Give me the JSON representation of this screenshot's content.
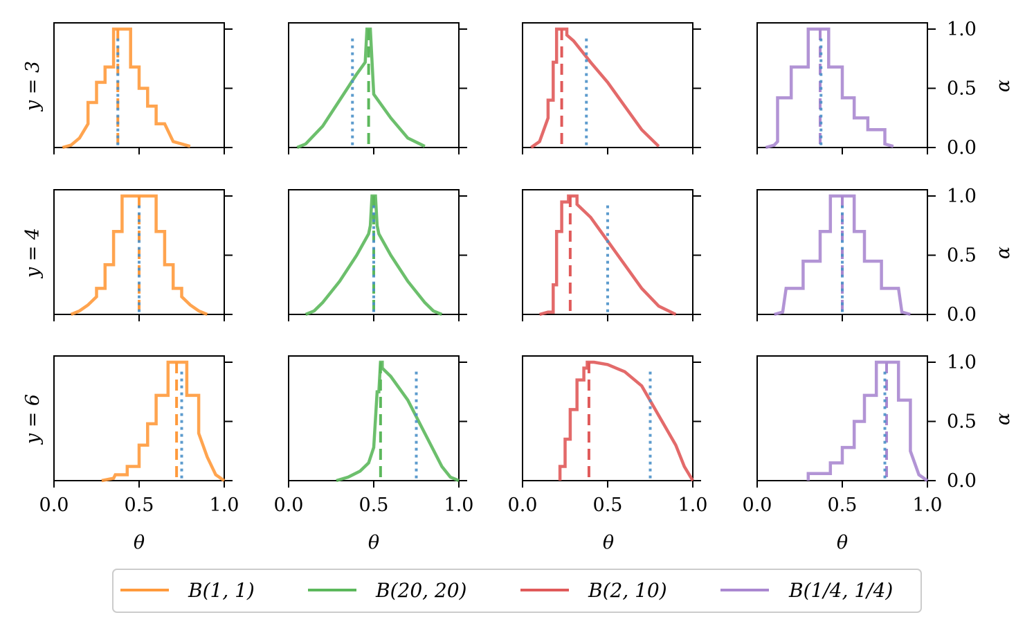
{
  "chart_data": {
    "type": "line",
    "title": "",
    "layout": {
      "rows": 3,
      "cols": 4
    },
    "xlabel": "θ",
    "ylabel_right": "α",
    "xlim": [
      0,
      1
    ],
    "ylim": [
      0,
      1
    ],
    "xticks": [
      "0.0",
      "0.5",
      "1.0"
    ],
    "yticks": [
      "0.0",
      "0.5",
      "1.0"
    ],
    "row_labels": [
      "y = 3",
      "y = 4",
      "y = 6"
    ],
    "true_values": [
      0.375,
      0.5,
      0.75
    ],
    "legend": [
      {
        "label": "B(1, 1)",
        "color": "#ff9a3c"
      },
      {
        "label": "B(20, 20)",
        "color": "#5cb85c"
      },
      {
        "label": "B(2, 10)",
        "color": "#e05a5a"
      },
      {
        "label": "B(1/4, 1/4)",
        "color": "#aa88d0"
      }
    ],
    "series_colors": [
      "#ff9a3c",
      "#5cb85c",
      "#e05a5a",
      "#aa88d0"
    ],
    "truth_line_color": "#4a90c8",
    "panels": [
      [
        {
          "prior": "B(1, 1)",
          "mode": 0.375,
          "curve": [
            [
              0.05,
              0
            ],
            [
              0.1,
              0.02
            ],
            [
              0.15,
              0.08
            ],
            [
              0.2,
              0.2
            ],
            [
              0.2,
              0.38
            ],
            [
              0.25,
              0.38
            ],
            [
              0.25,
              0.55
            ],
            [
              0.3,
              0.55
            ],
            [
              0.3,
              0.68
            ],
            [
              0.35,
              0.68
            ],
            [
              0.35,
              1.0
            ],
            [
              0.45,
              1.0
            ],
            [
              0.45,
              0.68
            ],
            [
              0.5,
              0.68
            ],
            [
              0.5,
              0.5
            ],
            [
              0.55,
              0.5
            ],
            [
              0.55,
              0.35
            ],
            [
              0.6,
              0.35
            ],
            [
              0.6,
              0.2
            ],
            [
              0.65,
              0.2
            ],
            [
              0.7,
              0.05
            ],
            [
              0.8,
              0.01
            ]
          ]
        },
        {
          "prior": "B(20, 20)",
          "mode": 0.47,
          "curve": [
            [
              0.05,
              0
            ],
            [
              0.1,
              0.03
            ],
            [
              0.2,
              0.18
            ],
            [
              0.3,
              0.4
            ],
            [
              0.4,
              0.62
            ],
            [
              0.45,
              0.72
            ],
            [
              0.46,
              1.0
            ],
            [
              0.48,
              1.0
            ],
            [
              0.5,
              0.45
            ],
            [
              0.6,
              0.25
            ],
            [
              0.7,
              0.08
            ],
            [
              0.8,
              0.01
            ]
          ]
        },
        {
          "prior": "B(2, 10)",
          "mode": 0.23,
          "curve": [
            [
              0.05,
              0
            ],
            [
              0.1,
              0.05
            ],
            [
              0.15,
              0.25
            ],
            [
              0.15,
              0.4
            ],
            [
              0.18,
              0.4
            ],
            [
              0.18,
              0.72
            ],
            [
              0.2,
              0.72
            ],
            [
              0.2,
              1.0
            ],
            [
              0.26,
              1.0
            ],
            [
              0.26,
              0.95
            ],
            [
              0.3,
              0.9
            ],
            [
              0.4,
              0.72
            ],
            [
              0.5,
              0.55
            ],
            [
              0.6,
              0.35
            ],
            [
              0.7,
              0.15
            ],
            [
              0.8,
              0.01
            ]
          ]
        },
        {
          "prior": "B(1/4, 1/4)",
          "mode": 0.37,
          "curve": [
            [
              0.05,
              0
            ],
            [
              0.1,
              0.02
            ],
            [
              0.12,
              0.05
            ],
            [
              0.12,
              0.42
            ],
            [
              0.2,
              0.42
            ],
            [
              0.2,
              0.68
            ],
            [
              0.3,
              0.68
            ],
            [
              0.3,
              1.0
            ],
            [
              0.42,
              1.0
            ],
            [
              0.42,
              0.68
            ],
            [
              0.5,
              0.68
            ],
            [
              0.5,
              0.42
            ],
            [
              0.57,
              0.42
            ],
            [
              0.57,
              0.25
            ],
            [
              0.65,
              0.25
            ],
            [
              0.65,
              0.15
            ],
            [
              0.75,
              0.15
            ],
            [
              0.75,
              0.03
            ],
            [
              0.8,
              0.01
            ]
          ]
        }
      ],
      [
        {
          "prior": "B(1, 1)",
          "mode": 0.5,
          "curve": [
            [
              0.1,
              0
            ],
            [
              0.15,
              0.03
            ],
            [
              0.2,
              0.08
            ],
            [
              0.25,
              0.15
            ],
            [
              0.25,
              0.22
            ],
            [
              0.3,
              0.22
            ],
            [
              0.3,
              0.42
            ],
            [
              0.35,
              0.42
            ],
            [
              0.35,
              0.7
            ],
            [
              0.4,
              0.7
            ],
            [
              0.4,
              1.0
            ],
            [
              0.6,
              1.0
            ],
            [
              0.6,
              0.7
            ],
            [
              0.65,
              0.7
            ],
            [
              0.65,
              0.42
            ],
            [
              0.7,
              0.42
            ],
            [
              0.7,
              0.22
            ],
            [
              0.75,
              0.22
            ],
            [
              0.75,
              0.15
            ],
            [
              0.8,
              0.08
            ],
            [
              0.85,
              0.03
            ],
            [
              0.9,
              0
            ]
          ]
        },
        {
          "prior": "B(20, 20)",
          "mode": 0.5,
          "curve": [
            [
              0.1,
              0
            ],
            [
              0.15,
              0.03
            ],
            [
              0.2,
              0.1
            ],
            [
              0.3,
              0.28
            ],
            [
              0.4,
              0.5
            ],
            [
              0.47,
              0.68
            ],
            [
              0.48,
              0.75
            ],
            [
              0.49,
              1.0
            ],
            [
              0.51,
              1.0
            ],
            [
              0.52,
              0.75
            ],
            [
              0.53,
              0.68
            ],
            [
              0.6,
              0.5
            ],
            [
              0.7,
              0.28
            ],
            [
              0.8,
              0.1
            ],
            [
              0.85,
              0.03
            ],
            [
              0.9,
              0
            ]
          ]
        },
        {
          "prior": "B(2, 10)",
          "mode": 0.28,
          "curve": [
            [
              0.1,
              0
            ],
            [
              0.15,
              0.02
            ],
            [
              0.18,
              0.02
            ],
            [
              0.18,
              0.25
            ],
            [
              0.2,
              0.25
            ],
            [
              0.2,
              0.7
            ],
            [
              0.23,
              0.7
            ],
            [
              0.23,
              0.95
            ],
            [
              0.27,
              0.95
            ],
            [
              0.27,
              1.0
            ],
            [
              0.32,
              1.0
            ],
            [
              0.32,
              0.93
            ],
            [
              0.4,
              0.82
            ],
            [
              0.5,
              0.62
            ],
            [
              0.6,
              0.42
            ],
            [
              0.7,
              0.22
            ],
            [
              0.8,
              0.07
            ],
            [
              0.9,
              0
            ]
          ]
        },
        {
          "prior": "B(1/4, 1/4)",
          "mode": 0.5,
          "curve": [
            [
              0.1,
              0
            ],
            [
              0.15,
              0.02
            ],
            [
              0.17,
              0.22
            ],
            [
              0.27,
              0.22
            ],
            [
              0.27,
              0.45
            ],
            [
              0.37,
              0.45
            ],
            [
              0.37,
              0.7
            ],
            [
              0.43,
              0.7
            ],
            [
              0.43,
              1.0
            ],
            [
              0.57,
              1.0
            ],
            [
              0.57,
              0.7
            ],
            [
              0.63,
              0.7
            ],
            [
              0.63,
              0.45
            ],
            [
              0.73,
              0.45
            ],
            [
              0.73,
              0.22
            ],
            [
              0.83,
              0.22
            ],
            [
              0.85,
              0.02
            ],
            [
              0.9,
              0
            ]
          ]
        }
      ],
      [
        {
          "prior": "B(1, 1)",
          "mode": 0.72,
          "curve": [
            [
              0.28,
              0
            ],
            [
              0.35,
              0.02
            ],
            [
              0.36,
              0.05
            ],
            [
              0.43,
              0.05
            ],
            [
              0.43,
              0.12
            ],
            [
              0.5,
              0.12
            ],
            [
              0.5,
              0.3
            ],
            [
              0.55,
              0.3
            ],
            [
              0.55,
              0.48
            ],
            [
              0.6,
              0.48
            ],
            [
              0.6,
              0.72
            ],
            [
              0.67,
              0.72
            ],
            [
              0.67,
              1.0
            ],
            [
              0.78,
              1.0
            ],
            [
              0.78,
              0.72
            ],
            [
              0.85,
              0.72
            ],
            [
              0.85,
              0.4
            ],
            [
              0.9,
              0.2
            ],
            [
              0.95,
              0.05
            ],
            [
              1.0,
              0
            ]
          ]
        },
        {
          "prior": "B(20, 20)",
          "mode": 0.54,
          "curve": [
            [
              0.28,
              0
            ],
            [
              0.35,
              0.03
            ],
            [
              0.42,
              0.08
            ],
            [
              0.47,
              0.15
            ],
            [
              0.5,
              0.28
            ],
            [
              0.52,
              0.75
            ],
            [
              0.53,
              0.75
            ],
            [
              0.54,
              1.0
            ],
            [
              0.55,
              1.0
            ],
            [
              0.55,
              0.95
            ],
            [
              0.6,
              0.88
            ],
            [
              0.7,
              0.68
            ],
            [
              0.8,
              0.4
            ],
            [
              0.9,
              0.12
            ],
            [
              0.95,
              0.03
            ],
            [
              1.0,
              0
            ]
          ]
        },
        {
          "prior": "B(2, 10)",
          "mode": 0.39,
          "curve": [
            [
              0.22,
              0
            ],
            [
              0.22,
              0.12
            ],
            [
              0.25,
              0.12
            ],
            [
              0.25,
              0.35
            ],
            [
              0.28,
              0.35
            ],
            [
              0.28,
              0.6
            ],
            [
              0.32,
              0.6
            ],
            [
              0.32,
              0.85
            ],
            [
              0.36,
              0.85
            ],
            [
              0.36,
              0.95
            ],
            [
              0.38,
              0.95
            ],
            [
              0.38,
              1.0
            ],
            [
              0.42,
              1.0
            ],
            [
              0.5,
              0.98
            ],
            [
              0.6,
              0.92
            ],
            [
              0.7,
              0.8
            ],
            [
              0.8,
              0.55
            ],
            [
              0.9,
              0.3
            ],
            [
              0.95,
              0.12
            ],
            [
              1.0,
              0
            ]
          ]
        },
        {
          "prior": "B(1/4, 1/4)",
          "mode": 0.76,
          "curve": [
            [
              0.3,
              0
            ],
            [
              0.3,
              0.06
            ],
            [
              0.43,
              0.06
            ],
            [
              0.43,
              0.15
            ],
            [
              0.5,
              0.15
            ],
            [
              0.5,
              0.28
            ],
            [
              0.57,
              0.28
            ],
            [
              0.57,
              0.5
            ],
            [
              0.63,
              0.5
            ],
            [
              0.63,
              0.72
            ],
            [
              0.7,
              0.72
            ],
            [
              0.7,
              1.0
            ],
            [
              0.83,
              1.0
            ],
            [
              0.83,
              0.68
            ],
            [
              0.9,
              0.68
            ],
            [
              0.9,
              0.25
            ],
            [
              0.95,
              0.05
            ],
            [
              1.0,
              0
            ]
          ]
        }
      ]
    ]
  }
}
